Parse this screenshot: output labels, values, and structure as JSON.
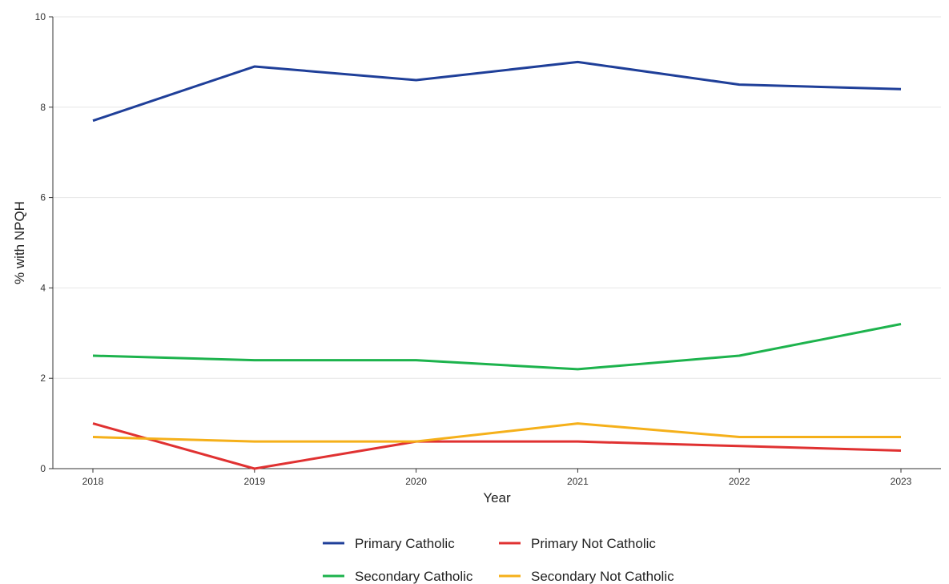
{
  "chart_data": {
    "type": "line",
    "title": "",
    "xlabel": "Year",
    "ylabel": "% with NPQH",
    "x": [
      2018,
      2019,
      2020,
      2021,
      2022,
      2023
    ],
    "x_tick_labels": [
      "2018",
      "2019",
      "2020",
      "2021",
      "2022",
      "2023"
    ],
    "ylim": [
      0,
      10
    ],
    "y_ticks": [
      0,
      2,
      4,
      6,
      8,
      10
    ],
    "y_tick_labels": [
      "0",
      "2",
      "4",
      "6",
      "8",
      "10"
    ],
    "grid": true,
    "legend_position": "bottom",
    "series": [
      {
        "name": "Primary Catholic",
        "color": "#1f3f99",
        "values": [
          7.7,
          8.9,
          8.6,
          9.0,
          8.5,
          8.4
        ]
      },
      {
        "name": "Primary Not Catholic",
        "color": "#e03131",
        "values": [
          1.0,
          0.0,
          0.6,
          0.6,
          0.5,
          0.4
        ]
      },
      {
        "name": "Secondary Catholic",
        "color": "#1db34d",
        "values": [
          2.5,
          2.4,
          2.4,
          2.2,
          2.5,
          3.2
        ]
      },
      {
        "name": "Secondary Not Catholic",
        "color": "#f5b01a",
        "values": [
          0.7,
          0.6,
          0.6,
          1.0,
          0.7,
          0.7
        ]
      }
    ]
  }
}
